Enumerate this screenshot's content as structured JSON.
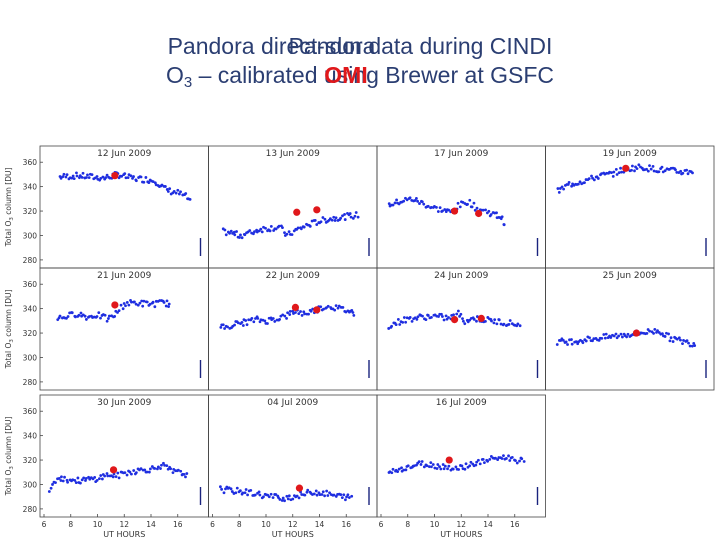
{
  "header": {
    "line1_text": "Pandora direct-sun data during CINDI",
    "line1_legend": "Pandora",
    "line2_prefix": "O",
    "line2_sub": "3",
    "line2_text": " – calibrated using Brewer at GSFC",
    "line2_legend": "OMI"
  },
  "colors": {
    "pandora": "#1f2ee0",
    "omi": "#e0181b",
    "title": "#2b3e72",
    "axis": "#444444"
  },
  "axes": {
    "ylabel_main": "Total O",
    "ylabel_sub": "3",
    "ylabel_rest": " column [DU]",
    "xlabel": "UT HOURS"
  },
  "chart_data": {
    "type": "scatter",
    "xlabel": "UT HOURS",
    "ylabel": "Total O3 column [DU]",
    "xlim": [
      6,
      18
    ],
    "ylim": [
      275,
      370
    ],
    "xticks": [
      6,
      8,
      10,
      12,
      14,
      16
    ],
    "yticks": [
      280,
      300,
      320,
      340,
      360
    ],
    "series_names": [
      "Pandora",
      "OMI"
    ],
    "panels": [
      {
        "date": "12 Jun 2009",
        "pandora": [
          [
            7.2,
            348
          ],
          [
            8.5,
            349
          ],
          [
            9.5,
            348
          ],
          [
            10.5,
            347
          ],
          [
            11.5,
            350
          ],
          [
            12.5,
            347
          ],
          [
            13.5,
            346
          ],
          [
            14.3,
            345
          ],
          [
            15.2,
            337
          ],
          [
            16,
            335
          ],
          [
            16.6,
            332
          ],
          [
            17,
            326
          ]
        ],
        "omi": [
          [
            11.3,
            349
          ]
        ]
      },
      {
        "date": "13 Jun 2009",
        "pandora": [
          [
            6.8,
            303
          ],
          [
            7.5,
            302
          ],
          [
            8,
            300
          ],
          [
            8.8,
            302
          ],
          [
            9.5,
            305
          ],
          [
            10.2,
            306
          ],
          [
            11,
            307
          ],
          [
            11.6,
            300
          ],
          [
            12.2,
            304
          ],
          [
            13,
            308
          ],
          [
            13.8,
            311
          ],
          [
            14.5,
            313
          ],
          [
            15.5,
            315
          ],
          [
            16.4,
            316
          ],
          [
            17,
            317
          ]
        ],
        "omi": [
          [
            12.3,
            319
          ],
          [
            13.8,
            321
          ]
        ]
      },
      {
        "date": "17 Jun 2009",
        "pandora": [
          [
            6.6,
            325
          ],
          [
            7.5,
            328
          ],
          [
            8.3,
            330
          ],
          [
            9,
            327
          ],
          [
            9.8,
            323
          ],
          [
            10.5,
            321
          ],
          [
            11.2,
            319
          ],
          [
            11.8,
            324
          ],
          [
            12.5,
            328
          ],
          [
            13.2,
            322
          ],
          [
            13.8,
            320
          ],
          [
            14.5,
            317
          ],
          [
            15,
            315
          ],
          [
            15.3,
            308
          ]
        ],
        "omi": [
          [
            11.5,
            320
          ],
          [
            13.3,
            318
          ]
        ]
      },
      {
        "date": "19 Jun 2009",
        "pandora": [
          [
            6.6,
            336
          ],
          [
            7.5,
            342
          ],
          [
            8.3,
            344
          ],
          [
            9,
            346
          ],
          [
            9.8,
            349
          ],
          [
            10.5,
            350
          ],
          [
            11.3,
            353
          ],
          [
            12,
            355
          ],
          [
            12.8,
            356
          ],
          [
            13.5,
            355
          ],
          [
            14.3,
            354
          ],
          [
            15,
            353
          ],
          [
            16,
            352
          ],
          [
            16.8,
            353
          ]
        ],
        "omi": [
          [
            11.7,
            355
          ]
        ]
      },
      {
        "date": "21 Jun 2009",
        "pandora": [
          [
            7,
            332
          ],
          [
            7.8,
            334
          ],
          [
            8.5,
            336
          ],
          [
            9.3,
            333
          ],
          [
            10,
            335
          ],
          [
            10.8,
            331
          ],
          [
            11.4,
            336
          ],
          [
            12,
            344
          ],
          [
            12.8,
            345
          ],
          [
            13.5,
            344
          ],
          [
            14.3,
            344
          ],
          [
            15,
            345
          ],
          [
            15.5,
            343
          ]
        ],
        "omi": [
          [
            11.3,
            343
          ]
        ]
      },
      {
        "date": "22 Jun 2009",
        "pandora": [
          [
            6.6,
            324
          ],
          [
            7.5,
            327
          ],
          [
            8.5,
            329
          ],
          [
            9.3,
            331
          ],
          [
            10,
            330
          ],
          [
            10.8,
            332
          ],
          [
            11.5,
            334
          ],
          [
            12.2,
            338
          ],
          [
            12.8,
            336
          ],
          [
            13.5,
            338
          ],
          [
            14.2,
            341
          ],
          [
            14.8,
            342
          ],
          [
            15.5,
            340
          ],
          [
            16.2,
            338
          ],
          [
            16.7,
            336
          ]
        ],
        "omi": [
          [
            12.2,
            341
          ],
          [
            13.8,
            339
          ]
        ]
      },
      {
        "date": "24 Jun 2009",
        "pandora": [
          [
            6.6,
            326
          ],
          [
            7.5,
            330
          ],
          [
            8.3,
            332
          ],
          [
            9,
            333
          ],
          [
            9.8,
            334
          ],
          [
            10.5,
            333
          ],
          [
            11.2,
            332
          ],
          [
            11.8,
            336
          ],
          [
            12.3,
            330
          ],
          [
            13,
            332
          ],
          [
            13.6,
            331
          ],
          [
            14.3,
            330
          ],
          [
            15,
            329
          ],
          [
            15.8,
            328
          ],
          [
            16.5,
            326
          ]
        ],
        "omi": [
          [
            11.5,
            331
          ],
          [
            13.5,
            332
          ]
        ]
      },
      {
        "date": "25 Jun 2009",
        "pandora": [
          [
            6.6,
            313
          ],
          [
            7.5,
            313
          ],
          [
            8.3,
            314
          ],
          [
            9,
            315
          ],
          [
            9.8,
            316
          ],
          [
            10.5,
            317
          ],
          [
            11.2,
            318
          ],
          [
            12,
            319
          ],
          [
            12.7,
            320
          ],
          [
            13.4,
            321
          ],
          [
            14.2,
            322
          ],
          [
            15,
            316
          ],
          [
            15.7,
            314
          ],
          [
            16.4,
            312
          ],
          [
            17,
            311
          ]
        ],
        "omi": [
          [
            12.5,
            320
          ]
        ]
      },
      {
        "date": "30 Jun 2009",
        "pandora": [
          [
            6.4,
            296
          ],
          [
            7,
            306
          ],
          [
            7.8,
            304
          ],
          [
            8.5,
            303
          ],
          [
            9.3,
            304
          ],
          [
            10,
            305
          ],
          [
            10.8,
            308
          ],
          [
            11.5,
            307
          ],
          [
            12.2,
            310
          ],
          [
            12.8,
            311
          ],
          [
            13.5,
            312
          ],
          [
            14.2,
            313
          ],
          [
            14.8,
            316
          ],
          [
            15.5,
            311
          ],
          [
            16.3,
            309
          ],
          [
            16.8,
            308
          ]
        ],
        "omi": [
          [
            11.2,
            312
          ]
        ]
      },
      {
        "date": "04 Jul 2009",
        "pandora": [
          [
            6.6,
            296
          ],
          [
            7.5,
            295
          ],
          [
            8.3,
            294
          ],
          [
            9,
            293
          ],
          [
            9.8,
            291
          ],
          [
            10.5,
            290
          ],
          [
            11.3,
            289
          ],
          [
            12,
            290
          ],
          [
            12.8,
            292
          ],
          [
            13.5,
            294
          ],
          [
            14.3,
            293
          ],
          [
            15,
            291
          ],
          [
            15.8,
            290
          ],
          [
            16.5,
            289
          ]
        ],
        "omi": [
          [
            12.5,
            297
          ]
        ]
      },
      {
        "date": "16 Jul 2009",
        "pandora": [
          [
            6.6,
            310
          ],
          [
            7.5,
            313
          ],
          [
            8.3,
            315
          ],
          [
            9,
            317
          ],
          [
            9.8,
            316
          ],
          [
            10.5,
            315
          ],
          [
            11.2,
            314
          ],
          [
            11.8,
            313
          ],
          [
            12.5,
            316
          ],
          [
            13.3,
            318
          ],
          [
            14,
            320
          ],
          [
            14.8,
            322
          ],
          [
            15.5,
            322
          ],
          [
            16.2,
            320
          ],
          [
            16.8,
            318
          ]
        ],
        "omi": [
          [
            11.1,
            320
          ]
        ]
      }
    ]
  }
}
